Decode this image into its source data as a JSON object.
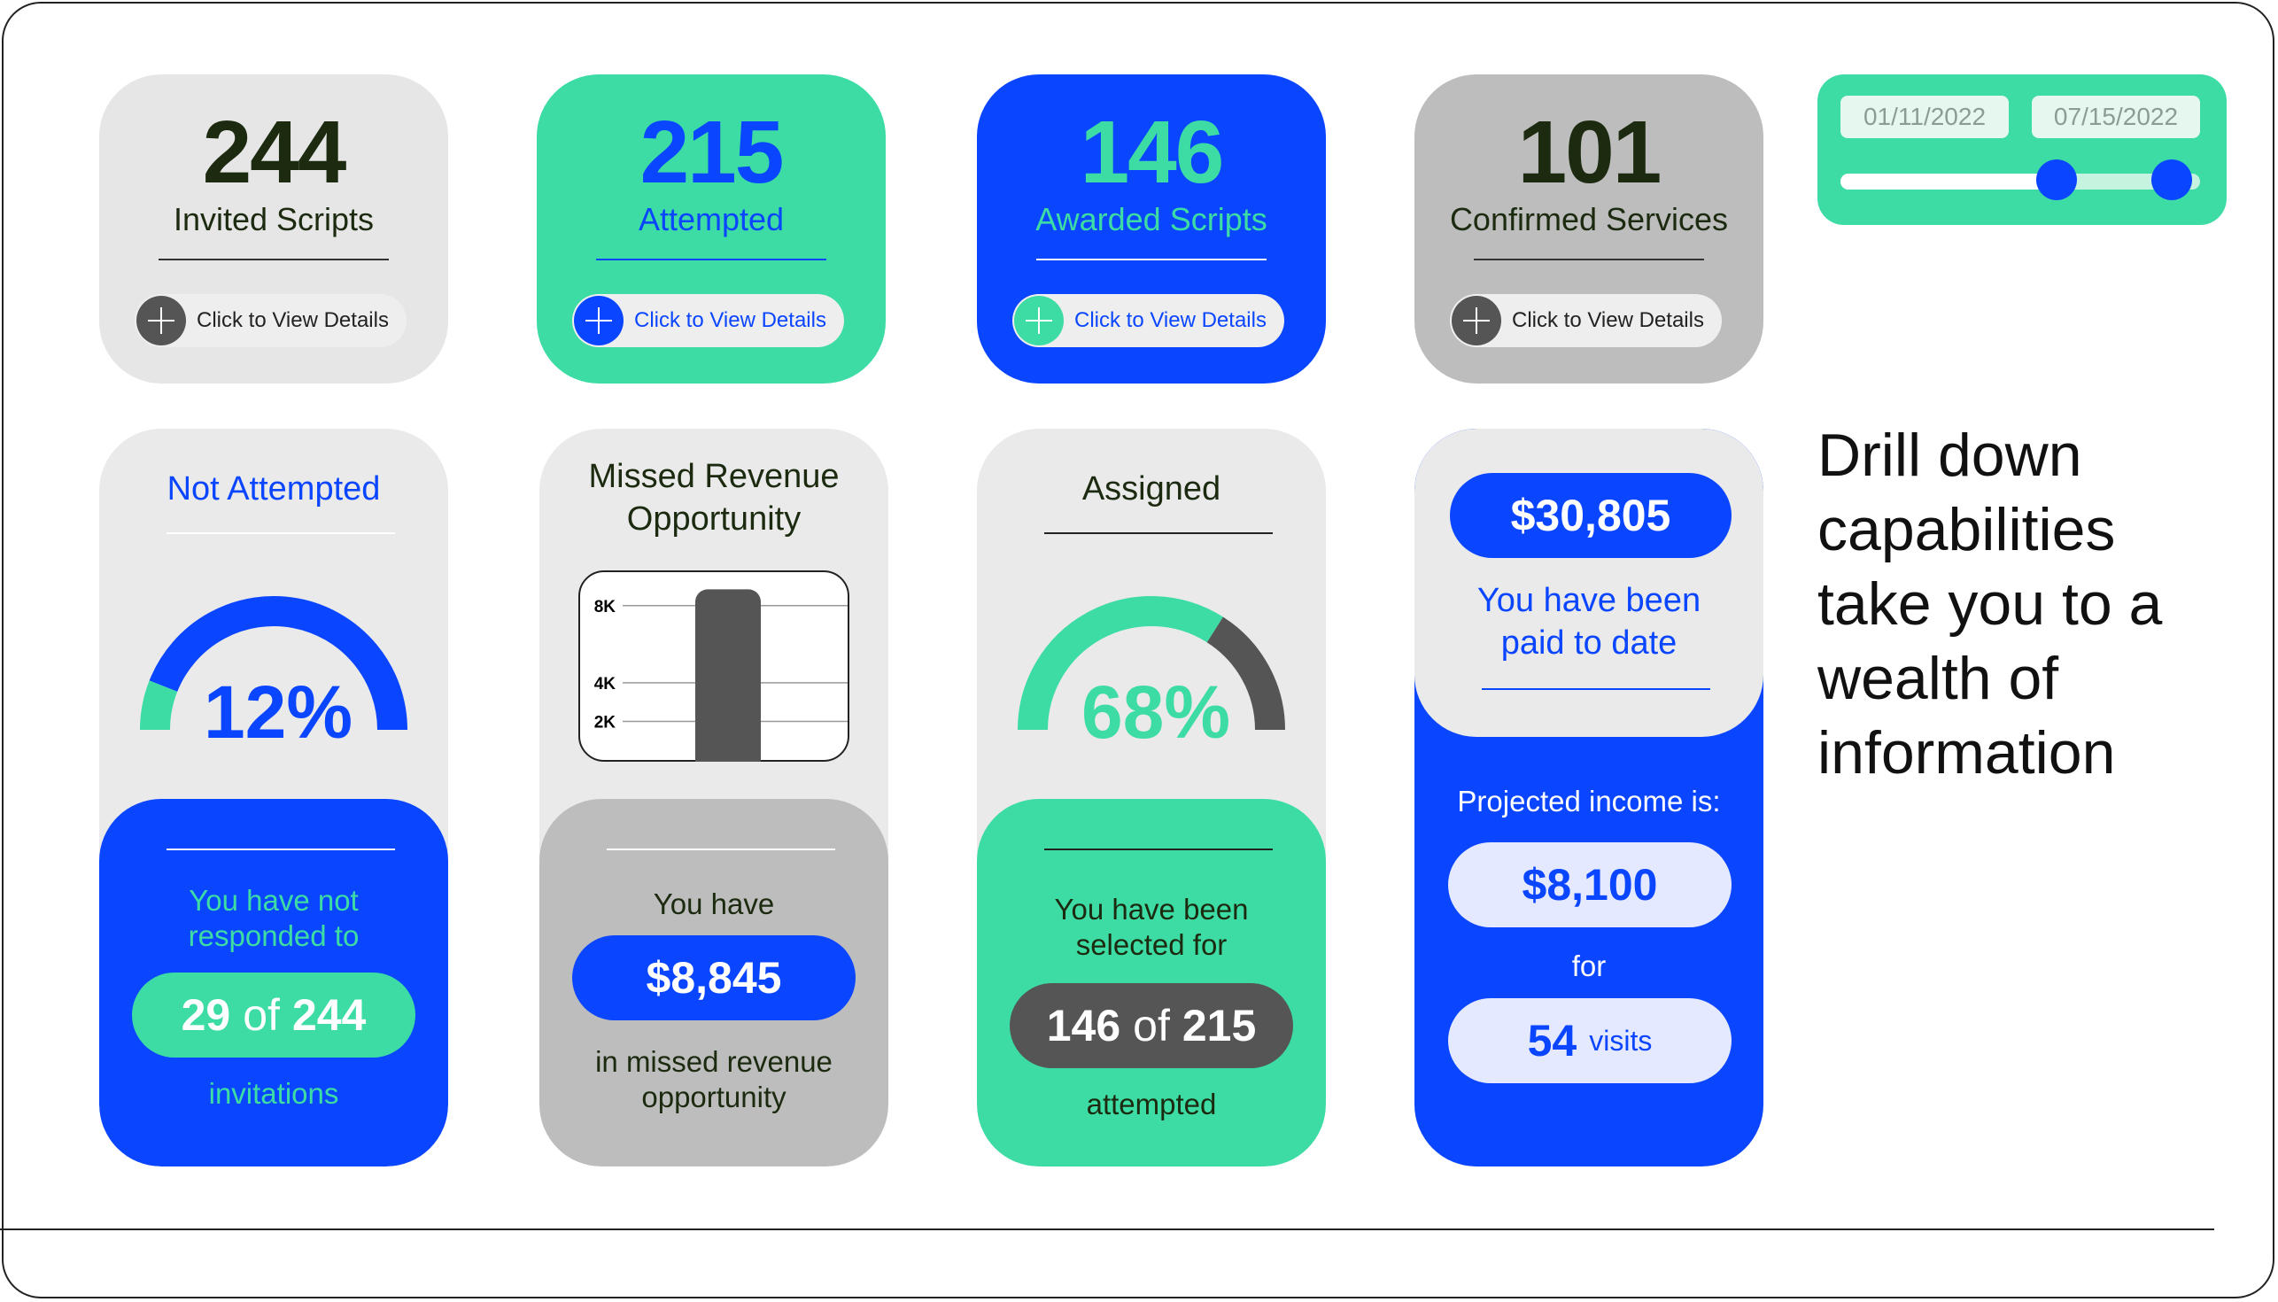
{
  "kpis": [
    {
      "value": "244",
      "label": "Invited Scripts",
      "cta": "Click to View Details"
    },
    {
      "value": "215",
      "label": "Attempted",
      "cta": "Click to View Details"
    },
    {
      "value": "146",
      "label": "Awarded Scripts",
      "cta": "Click to View Details"
    },
    {
      "value": "101",
      "label": "Confirmed Services",
      "cta": "Click to View Details"
    }
  ],
  "date_range": {
    "start": "01/11/2022",
    "end": "07/15/2022",
    "start_fraction": 0.6,
    "end_fraction": 0.92
  },
  "tagline": "Drill down capabilities take you to a wealth of information",
  "not_attempted": {
    "title": "Not Attempted",
    "percent": "12%",
    "percent_value": 12,
    "line1": "You have not",
    "line2": "responded to",
    "count": "29",
    "of": "of",
    "total": "244",
    "footer": "invitations"
  },
  "missed_revenue": {
    "title_line1": "Missed Revenue",
    "title_line2": "Opportunity",
    "ticks": [
      "8K",
      "4K",
      "2K"
    ],
    "bar_value": 8845,
    "line1": "You have",
    "amount": "$8,845",
    "footer_line1": "in missed revenue",
    "footer_line2": "opportunity"
  },
  "assigned": {
    "title": "Assigned",
    "percent": "68%",
    "percent_value": 68,
    "line1": "You have been",
    "line2": "selected for",
    "count": "146",
    "of": "of",
    "total": "215",
    "footer": "attempted"
  },
  "paid": {
    "amount": "$30,805",
    "line1": "You have been",
    "line2": "paid to date",
    "projected_label": "Projected income is:",
    "projected": "$8,100",
    "for": "for",
    "visits_count": "54",
    "visits_label": "visits"
  },
  "colors": {
    "blue": "#0a45ff",
    "green": "#3ddca4",
    "gray": "#bdbdbd",
    "light_gray": "#e6e6e6",
    "dark": "#555555"
  }
}
